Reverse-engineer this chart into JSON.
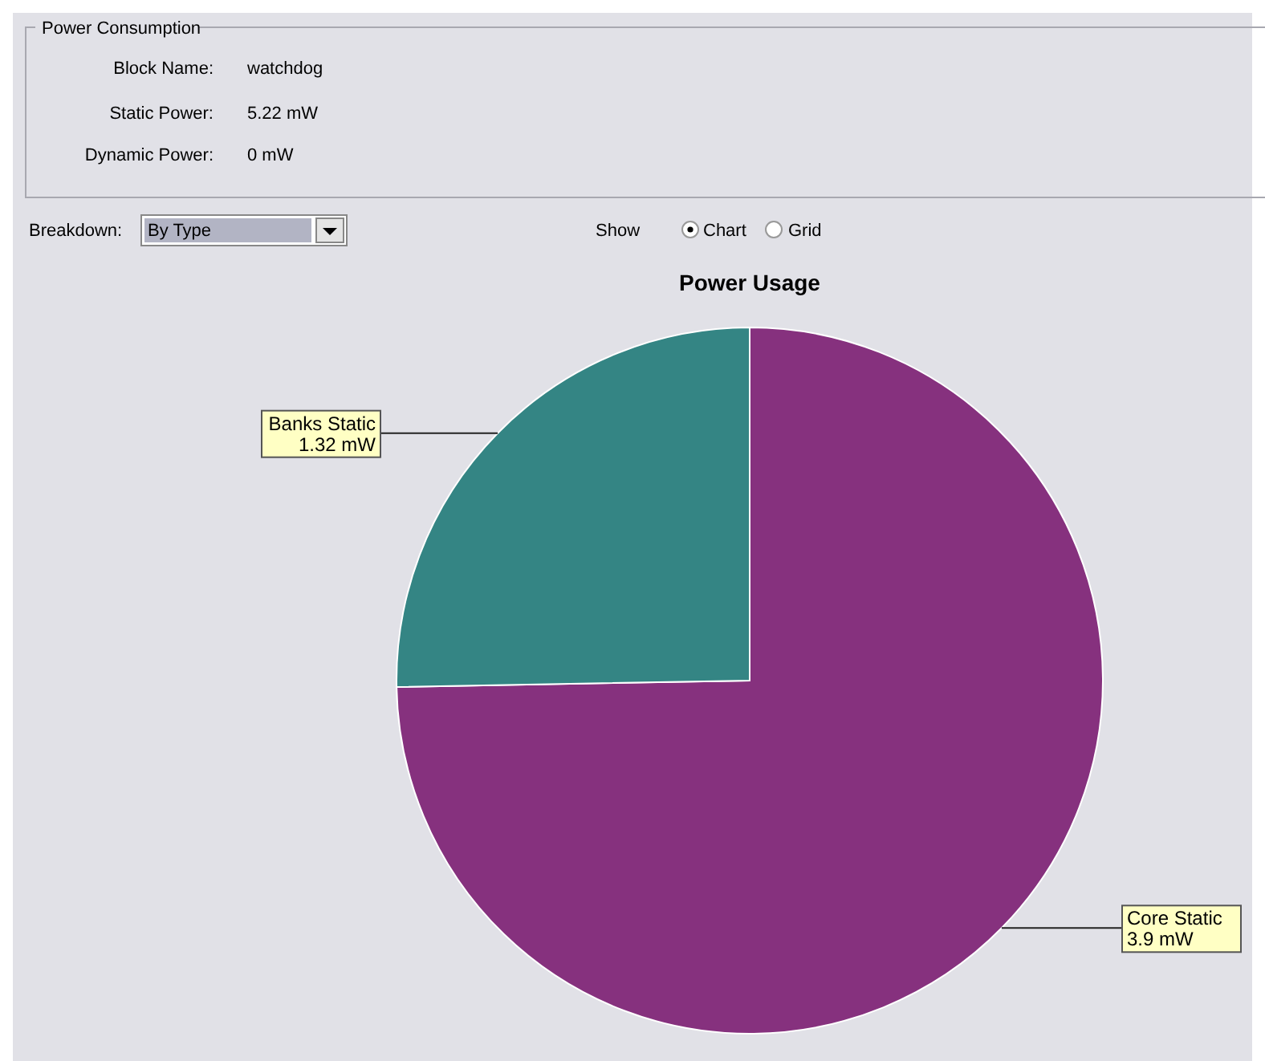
{
  "chart_data": {
    "type": "pie",
    "title": "Power Usage",
    "categories": [
      "Core Static",
      "Banks Static"
    ],
    "values": [
      3.9,
      1.32
    ],
    "value_labels": [
      "3.9 mW",
      "1.32 mW"
    ],
    "colors": [
      "#86317e",
      "#348584"
    ],
    "annotations": [
      "Power Consumption",
      "Block Name:",
      "watchdog",
      "Static Power:",
      "5.22 mW",
      "Dynamic Power:",
      "0 mW",
      "Breakdown:",
      "By Type",
      "Show",
      "Chart",
      "Grid"
    ]
  }
}
